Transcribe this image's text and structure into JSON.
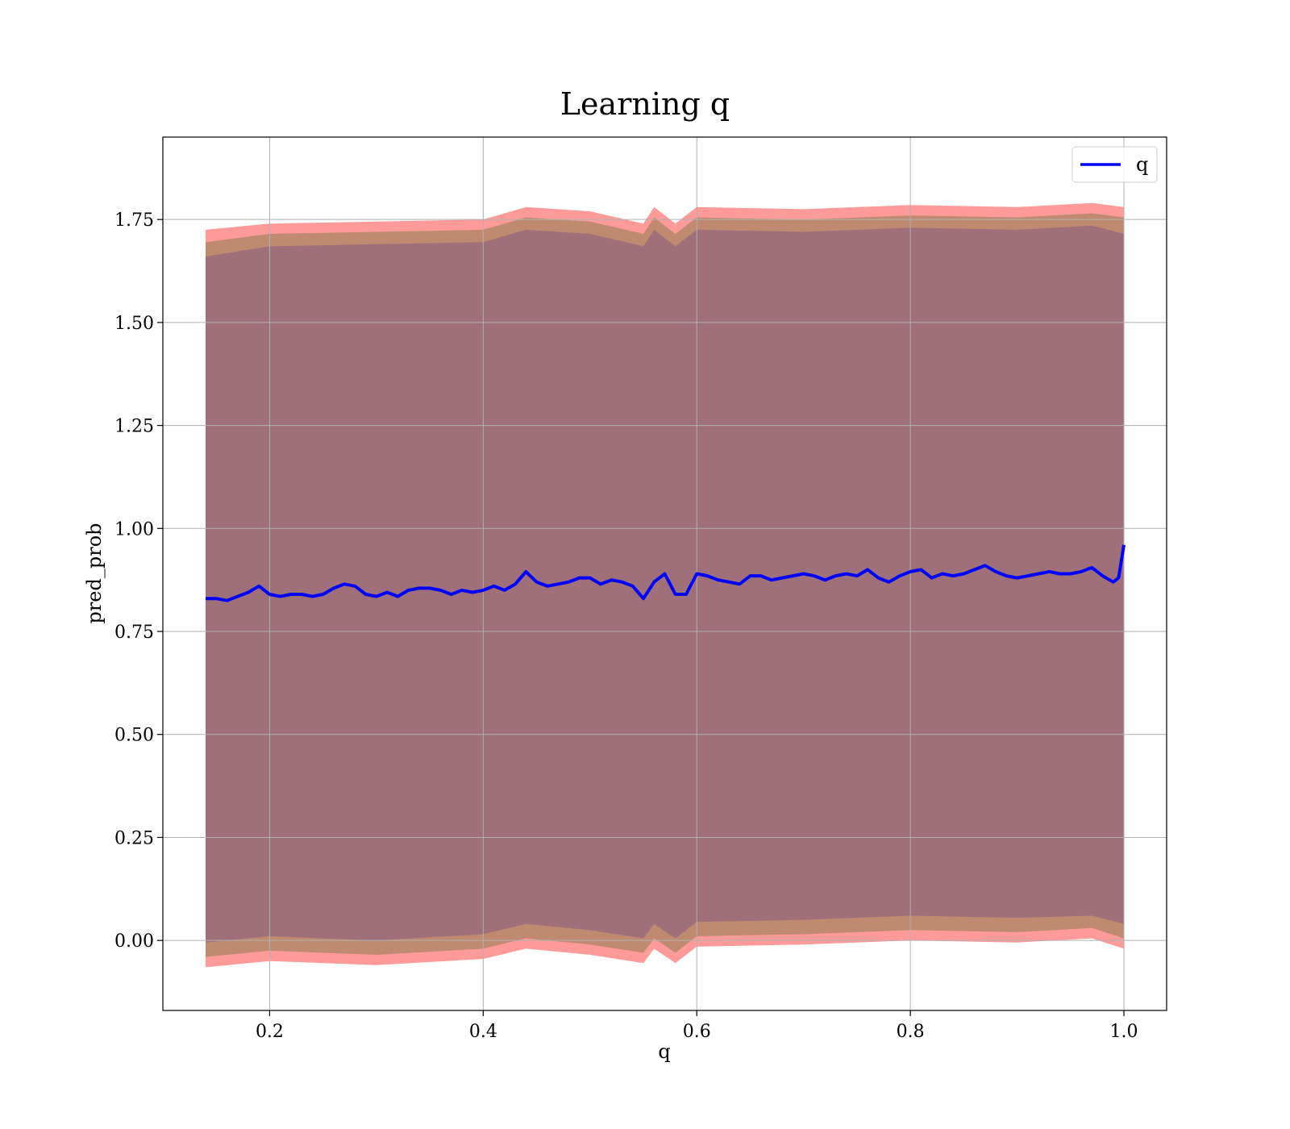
{
  "chart_data": {
    "type": "line",
    "title": "Learning q",
    "xlabel": "q",
    "ylabel": "pred_prob",
    "xlim": [
      0.1,
      1.04
    ],
    "ylim": [
      -0.17,
      1.95
    ],
    "xticks": [
      0.2,
      0.4,
      0.6,
      0.8,
      1.0
    ],
    "xtick_labels": [
      "0.2",
      "0.4",
      "0.6",
      "0.8",
      "1.0"
    ],
    "yticks": [
      0.0,
      0.25,
      0.5,
      0.75,
      1.0,
      1.25,
      1.5,
      1.75
    ],
    "ytick_labels": [
      "0.00",
      "0.25",
      "0.50",
      "0.75",
      "1.00",
      "1.25",
      "1.50",
      "1.75"
    ],
    "grid": true,
    "legend": {
      "placement": "top-right",
      "entries": [
        "q"
      ]
    },
    "colors": {
      "line": "#0000ff",
      "band_outer": "#ff9a9a",
      "band_middle": "#c08a70",
      "band_inner": "#a0707a"
    },
    "series": [
      {
        "name": "q",
        "x": [
          0.14,
          0.15,
          0.16,
          0.17,
          0.18,
          0.19,
          0.2,
          0.21,
          0.22,
          0.23,
          0.24,
          0.25,
          0.26,
          0.27,
          0.28,
          0.29,
          0.3,
          0.31,
          0.32,
          0.33,
          0.34,
          0.35,
          0.36,
          0.37,
          0.38,
          0.39,
          0.4,
          0.41,
          0.42,
          0.43,
          0.44,
          0.45,
          0.46,
          0.47,
          0.48,
          0.49,
          0.5,
          0.51,
          0.52,
          0.53,
          0.54,
          0.55,
          0.56,
          0.57,
          0.58,
          0.59,
          0.6,
          0.61,
          0.62,
          0.63,
          0.64,
          0.65,
          0.66,
          0.67,
          0.68,
          0.69,
          0.7,
          0.71,
          0.72,
          0.73,
          0.74,
          0.75,
          0.76,
          0.77,
          0.78,
          0.79,
          0.8,
          0.81,
          0.82,
          0.83,
          0.84,
          0.85,
          0.86,
          0.87,
          0.88,
          0.89,
          0.9,
          0.91,
          0.92,
          0.93,
          0.94,
          0.95,
          0.96,
          0.97,
          0.98,
          0.99,
          0.995,
          1.0
        ],
        "y": [
          0.83,
          0.83,
          0.825,
          0.835,
          0.845,
          0.86,
          0.84,
          0.835,
          0.84,
          0.84,
          0.835,
          0.84,
          0.855,
          0.865,
          0.86,
          0.84,
          0.835,
          0.845,
          0.835,
          0.85,
          0.855,
          0.855,
          0.85,
          0.84,
          0.85,
          0.845,
          0.85,
          0.86,
          0.85,
          0.865,
          0.895,
          0.87,
          0.86,
          0.865,
          0.87,
          0.88,
          0.88,
          0.865,
          0.875,
          0.87,
          0.86,
          0.83,
          0.87,
          0.89,
          0.84,
          0.84,
          0.89,
          0.885,
          0.875,
          0.87,
          0.865,
          0.885,
          0.885,
          0.875,
          0.88,
          0.885,
          0.89,
          0.885,
          0.875,
          0.885,
          0.89,
          0.885,
          0.9,
          0.88,
          0.87,
          0.885,
          0.895,
          0.9,
          0.88,
          0.89,
          0.885,
          0.89,
          0.9,
          0.91,
          0.895,
          0.885,
          0.88,
          0.885,
          0.89,
          0.895,
          0.89,
          0.89,
          0.895,
          0.905,
          0.885,
          0.87,
          0.88,
          0.96
        ]
      }
    ],
    "bands": [
      {
        "x": [
          0.14,
          0.2,
          0.3,
          0.4,
          0.44,
          0.5,
          0.55,
          0.56,
          0.58,
          0.6,
          0.7,
          0.8,
          0.9,
          0.97,
          1.0
        ],
        "upper": [
          1.725,
          1.74,
          1.745,
          1.75,
          1.78,
          1.77,
          1.74,
          1.78,
          1.74,
          1.78,
          1.775,
          1.785,
          1.78,
          1.79,
          1.78
        ],
        "lower": [
          -0.065,
          -0.05,
          -0.06,
          -0.045,
          -0.02,
          -0.035,
          -0.055,
          -0.02,
          -0.055,
          -0.015,
          -0.01,
          0.0,
          -0.005,
          0.005,
          -0.02
        ]
      },
      {
        "x": [
          0.14,
          0.2,
          0.3,
          0.4,
          0.44,
          0.5,
          0.55,
          0.56,
          0.58,
          0.6,
          0.7,
          0.8,
          0.9,
          0.97,
          1.0
        ],
        "upper": [
          1.695,
          1.715,
          1.72,
          1.725,
          1.755,
          1.745,
          1.715,
          1.755,
          1.715,
          1.755,
          1.75,
          1.76,
          1.755,
          1.765,
          1.755
        ],
        "lower": [
          -0.04,
          -0.025,
          -0.035,
          -0.02,
          0.005,
          -0.01,
          -0.03,
          0.005,
          -0.03,
          0.01,
          0.015,
          0.025,
          0.02,
          0.03,
          0.005
        ]
      },
      {
        "x": [
          0.14,
          0.2,
          0.3,
          0.4,
          0.44,
          0.5,
          0.55,
          0.56,
          0.58,
          0.6,
          0.7,
          0.8,
          0.9,
          0.97,
          1.0
        ],
        "upper": [
          1.66,
          1.685,
          1.69,
          1.695,
          1.725,
          1.715,
          1.685,
          1.725,
          1.685,
          1.725,
          1.72,
          1.73,
          1.725,
          1.735,
          1.715
        ],
        "lower": [
          -0.005,
          0.01,
          0.0,
          0.015,
          0.04,
          0.025,
          0.005,
          0.04,
          0.005,
          0.045,
          0.05,
          0.06,
          0.055,
          0.06,
          0.04
        ]
      }
    ]
  }
}
